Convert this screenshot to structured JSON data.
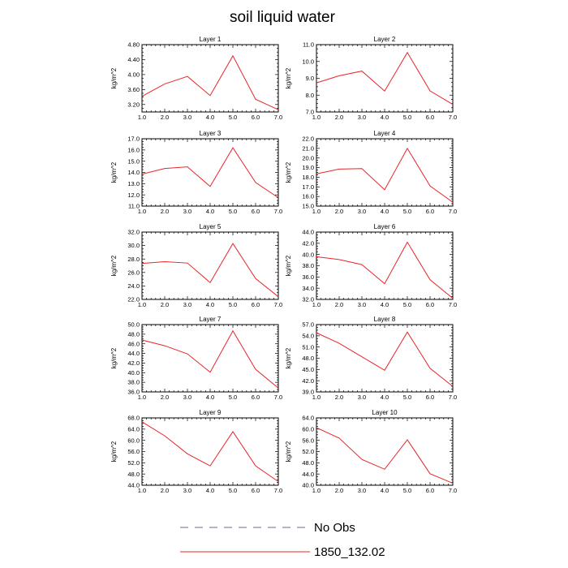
{
  "chart_data": {
    "type": "line",
    "title": "soil liquid water",
    "x": [
      1.0,
      2.0,
      3.0,
      4.0,
      5.0,
      6.0,
      7.0
    ],
    "xticks": [
      "1.0",
      "2.0",
      "3.0",
      "4.0",
      "5.0",
      "6.0",
      "7.0"
    ],
    "xlim": [
      1.0,
      7.0
    ],
    "ylabel": "kg/m^2",
    "grid": false,
    "legend": {
      "placement": "bottom",
      "entries": [
        {
          "label": "No Obs",
          "style": "dashed",
          "color": "#6a6a9a"
        },
        {
          "label": "1850_132.02",
          "style": "solid",
          "color": "#e8252a"
        }
      ]
    },
    "panels": [
      {
        "title": "Layer 1",
        "ylim": [
          3.0,
          4.8
        ],
        "yticks": [
          "3.20",
          "3.60",
          "4.00",
          "4.40",
          "4.80"
        ],
        "series": [
          {
            "name": "1850_132.02",
            "values": [
              3.42,
              3.75,
              3.95,
              3.44,
              4.5,
              3.34,
              3.06
            ]
          }
        ]
      },
      {
        "title": "Layer 2",
        "ylim": [
          7.0,
          11.0
        ],
        "yticks": [
          "7.0",
          "8.0",
          "9.0",
          "10.0",
          "11.0"
        ],
        "series": [
          {
            "name": "1850_132.02",
            "values": [
              8.73,
              9.15,
              9.43,
              8.24,
              10.53,
              8.25,
              7.45
            ]
          }
        ]
      },
      {
        "title": "Layer 3",
        "ylim": [
          11.0,
          17.0
        ],
        "yticks": [
          "11.0",
          "12.0",
          "13.0",
          "14.0",
          "15.0",
          "16.0",
          "17.0"
        ],
        "series": [
          {
            "name": "1850_132.02",
            "values": [
              13.85,
              14.35,
              14.5,
              12.75,
              16.2,
              13.1,
              11.75
            ]
          }
        ]
      },
      {
        "title": "Layer 4",
        "ylim": [
          15.0,
          22.0
        ],
        "yticks": [
          "15.0",
          "16.0",
          "17.0",
          "18.0",
          "19.0",
          "20.0",
          "21.0",
          "22.0"
        ],
        "series": [
          {
            "name": "1850_132.02",
            "values": [
              18.35,
              18.85,
              18.9,
              16.7,
              21.0,
              17.1,
              15.4
            ]
          }
        ]
      },
      {
        "title": "Layer 5",
        "ylim": [
          22.0,
          32.0
        ],
        "yticks": [
          "22.0",
          "24.0",
          "26.0",
          "28.0",
          "30.0",
          "32.0"
        ],
        "series": [
          {
            "name": "1850_132.02",
            "values": [
              27.35,
              27.6,
              27.4,
              24.5,
              30.3,
              25.1,
              22.4
            ]
          }
        ]
      },
      {
        "title": "Layer 6",
        "ylim": [
          32.0,
          44.0
        ],
        "yticks": [
          "32.0",
          "34.0",
          "36.0",
          "38.0",
          "40.0",
          "42.0",
          "44.0"
        ],
        "series": [
          {
            "name": "1850_132.02",
            "values": [
              39.6,
              39.1,
              38.2,
              34.8,
              42.2,
              35.5,
              32.2
            ]
          }
        ]
      },
      {
        "title": "Layer 7",
        "ylim": [
          36.0,
          50.0
        ],
        "yticks": [
          "36.0",
          "38.0",
          "40.0",
          "42.0",
          "44.0",
          "46.0",
          "48.0",
          "50.0"
        ],
        "series": [
          {
            "name": "1850_132.02",
            "values": [
              46.8,
              45.6,
              43.9,
              40.1,
              48.7,
              40.7,
              36.8
            ]
          }
        ]
      },
      {
        "title": "Layer 8",
        "ylim": [
          39.0,
          57.0
        ],
        "yticks": [
          "39.0",
          "42.0",
          "45.0",
          "48.0",
          "51.0",
          "54.0",
          "57.0"
        ],
        "series": [
          {
            "name": "1850_132.02",
            "values": [
              54.8,
              52.0,
              48.4,
              44.8,
              55.0,
              45.3,
              40.5
            ]
          }
        ]
      },
      {
        "title": "Layer 9",
        "ylim": [
          44.0,
          68.0
        ],
        "yticks": [
          "44.0",
          "48.0",
          "52.0",
          "56.0",
          "60.0",
          "64.0",
          "68.0"
        ],
        "series": [
          {
            "name": "1850_132.02",
            "values": [
              66.6,
              61.6,
              55.2,
              50.9,
              63.1,
              50.9,
              45.3
            ]
          }
        ]
      },
      {
        "title": "Layer 10",
        "ylim": [
          40.0,
          64.0
        ],
        "yticks": [
          "40.0",
          "44.0",
          "48.0",
          "52.0",
          "56.0",
          "60.0",
          "64.0"
        ],
        "series": [
          {
            "name": "1850_132.02",
            "values": [
              60.5,
              56.8,
              49.2,
              45.7,
              56.2,
              44.1,
              40.7
            ]
          }
        ]
      }
    ]
  }
}
